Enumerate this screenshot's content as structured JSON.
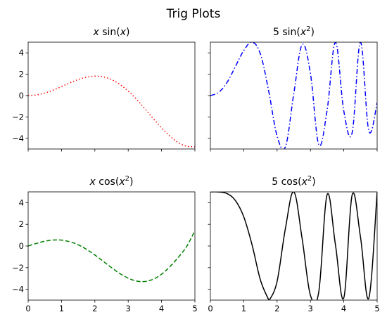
{
  "chart_data": {
    "type": "line",
    "title": "Trig Plots",
    "subplots": [
      {
        "title": {
          "pre": "x",
          "mid": " sin(",
          "var": "x",
          "post": ")",
          "sup": ""
        },
        "xlim": [
          0,
          5
        ],
        "ylim": [
          -5,
          5
        ],
        "xticks": [
          0,
          1,
          2,
          3,
          4,
          5
        ],
        "yticks": [
          -4,
          -2,
          0,
          2,
          4
        ],
        "xticklabels": [
          "0",
          "1",
          "2",
          "3",
          "4",
          "5"
        ],
        "yticklabels": [
          "−4",
          "−2",
          "0",
          "2",
          "4"
        ],
        "show_xticklabels": false,
        "show_yticklabels": true,
        "series": [
          {
            "color": "#ff0000",
            "linestyle": "dotted",
            "x": [
              0,
              0.25,
              0.5,
              0.75,
              1,
              1.25,
              1.5,
              1.75,
              2,
              2.25,
              2.5,
              2.75,
              3,
              3.25,
              3.5,
              3.75,
              4,
              4.25,
              4.5,
              4.75,
              5
            ],
            "y": [
              0,
              0.06,
              0.24,
              0.51,
              0.84,
              1.19,
              1.5,
              1.72,
              1.82,
              1.75,
              1.5,
              1.05,
              0.42,
              -0.35,
              -1.23,
              -2.15,
              -3.03,
              -3.79,
              -4.4,
              -4.74,
              -4.79
            ]
          }
        ]
      },
      {
        "title": {
          "pre": "5",
          "mid": " sin(",
          "var": "x",
          "post": ")",
          "sup": "2"
        },
        "xlim": [
          0,
          5
        ],
        "ylim": [
          -5,
          5
        ],
        "xticks": [
          0,
          1,
          2,
          3,
          4,
          5
        ],
        "yticks": [
          -4,
          -2,
          0,
          2,
          4
        ],
        "xticklabels": [
          "0",
          "1",
          "2",
          "3",
          "4",
          "5"
        ],
        "yticklabels": [
          "−4",
          "−2",
          "0",
          "2",
          "4"
        ],
        "show_xticklabels": false,
        "show_yticklabels": false,
        "series": [
          {
            "color": "#0000ff",
            "linestyle": "dashdot",
            "x": [
              0,
              0.25,
              0.5,
              0.75,
              1,
              1.25,
              1.5,
              1.75,
              2,
              2.25,
              2.5,
              2.75,
              3,
              3.25,
              3.5,
              3.75,
              4,
              4.25,
              4.5,
              4.75,
              5
            ],
            "y": [
              0,
              0.31,
              1.24,
              2.72,
              4.21,
              5.0,
              3.89,
              0.4,
              -3.78,
              -4.79,
              0.17,
              4.76,
              2.06,
              -4.59,
              -1.36,
              4.98,
              -1.44,
              -3.48,
              5.0,
              -3.3,
              -0.66
            ]
          }
        ]
      },
      {
        "title": {
          "pre": "x",
          "mid": " cos(",
          "var": "x",
          "post": ")",
          "sup": "2"
        },
        "xlim": [
          0,
          5
        ],
        "ylim": [
          -5,
          5
        ],
        "xticks": [
          0,
          1,
          2,
          3,
          4,
          5
        ],
        "yticks": [
          -4,
          -2,
          0,
          2,
          4
        ],
        "xticklabels": [
          "0",
          "1",
          "2",
          "3",
          "4",
          "5"
        ],
        "yticklabels": [
          "−4",
          "−2",
          "0",
          "2",
          "4"
        ],
        "show_xticklabels": true,
        "show_yticklabels": true,
        "series": [
          {
            "color": "#008000",
            "linestyle": "dashed",
            "x": [
              0,
              0.25,
              0.5,
              0.75,
              1,
              1.25,
              1.5,
              1.75,
              2,
              2.25,
              2.5,
              2.75,
              3,
              3.25,
              3.5,
              3.75,
              4,
              4.25,
              4.5,
              4.75,
              5
            ],
            "y": [
              0,
              0.24,
              0.44,
              0.55,
              0.54,
              0.39,
              0.11,
              -0.31,
              -0.83,
              -1.41,
              -2.0,
              -2.55,
              -2.97,
              -3.24,
              -3.28,
              -3.07,
              -2.61,
              -1.91,
              -1.05,
              -0.06,
              1.42
            ]
          }
        ]
      },
      {
        "title": {
          "pre": "5",
          "mid": " cos(",
          "var": "x",
          "post": ")",
          "sup": "2"
        },
        "xlim": [
          0,
          5
        ],
        "ylim": [
          -5,
          5
        ],
        "xticks": [
          0,
          1,
          2,
          3,
          4,
          5
        ],
        "yticks": [
          -4,
          -2,
          0,
          2,
          4
        ],
        "xticklabels": [
          "0",
          "1",
          "2",
          "3",
          "4",
          "5"
        ],
        "yticklabels": [
          "−4",
          "−2",
          "0",
          "2",
          "4"
        ],
        "show_xticklabels": true,
        "show_yticklabels": false,
        "series": [
          {
            "color": "#000000",
            "linestyle": "solid",
            "x": [
              0,
              0.25,
              0.5,
              0.75,
              1,
              1.25,
              1.5,
              1.75,
              1.77,
              2,
              2.25,
              2.5,
              2.75,
              3,
              3.25,
              3.5,
              3.75,
              4,
              4.25,
              4.5,
              4.75,
              5
            ],
            "y": [
              5.0,
              4.99,
              4.84,
              4.2,
              2.7,
              0.1,
              -3.14,
              -4.98,
              -5.0,
              -3.27,
              1.63,
              5.0,
              0.69,
              -4.56,
              -4.23,
              4.74,
              0.1,
              -4.79,
              4.71,
              0.84,
              -4.82,
              4.99
            ]
          }
        ]
      }
    ]
  }
}
